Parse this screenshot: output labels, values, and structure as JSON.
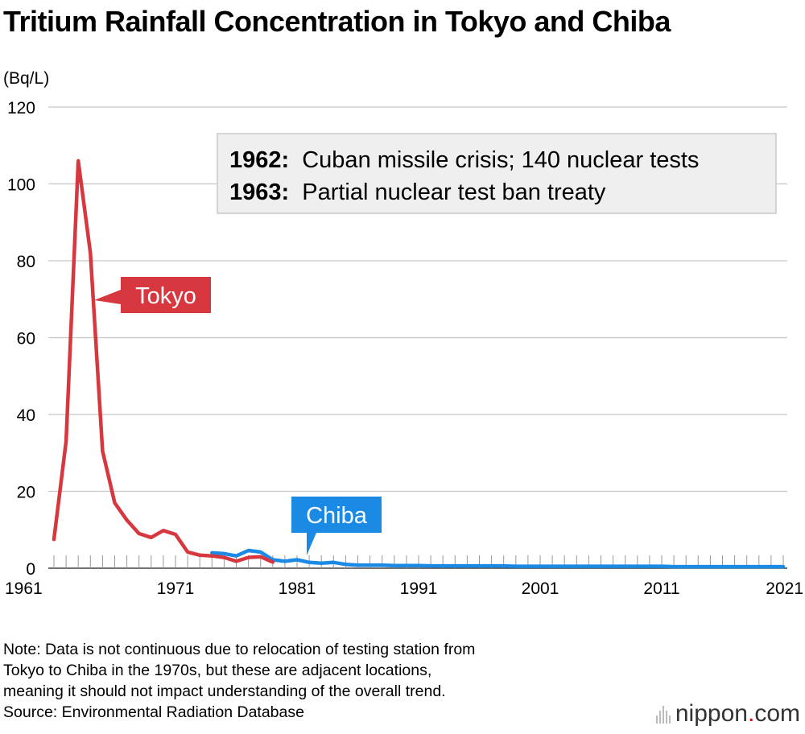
{
  "title": "Tritium Rainfall Concentration in Tokyo and Chiba",
  "chart_data": {
    "type": "line",
    "title": "Tritium Rainfall Concentration in Tokyo and Chiba",
    "ylabel": "(Bq/L)",
    "xlabel": "",
    "ylim": [
      0,
      120
    ],
    "xlim": [
      1961,
      2021
    ],
    "yticks": [
      "0",
      "20",
      "40",
      "60",
      "80",
      "100",
      "120"
    ],
    "xticks": [
      "1961",
      "1971",
      "1981",
      "1991",
      "2001",
      "2011",
      "2021"
    ],
    "grid": true,
    "series": [
      {
        "name": "Tokyo",
        "color": "#d7373f",
        "x": [
          1961,
          1962,
          1963,
          1964,
          1965,
          1966,
          1967,
          1968,
          1969,
          1970,
          1971,
          1972,
          1973,
          1974,
          1975,
          1976,
          1977,
          1978,
          1979
        ],
        "values": [
          7.5,
          33,
          106,
          82,
          30.5,
          17,
          12.5,
          9,
          8,
          9.8,
          8.8,
          4.2,
          3.4,
          3.2,
          2.8,
          1.8,
          2.8,
          3.0,
          1.6
        ]
      },
      {
        "name": "Chiba",
        "color": "#1a8ae5",
        "x": [
          1974,
          1975,
          1976,
          1977,
          1978,
          1979,
          1980,
          1981,
          1982,
          1983,
          1984,
          1985,
          1986,
          1987,
          1988,
          1989,
          1990,
          1991,
          1992,
          1993,
          1994,
          1995,
          1996,
          1997,
          1998,
          1999,
          2000,
          2001,
          2002,
          2003,
          2004,
          2005,
          2006,
          2007,
          2008,
          2009,
          2010,
          2011,
          2012,
          2013,
          2014,
          2015,
          2016,
          2017,
          2018,
          2019,
          2020,
          2021
        ],
        "values": [
          4.0,
          3.8,
          3.2,
          4.6,
          4.2,
          2.2,
          1.8,
          2.2,
          1.5,
          1.3,
          1.5,
          1.0,
          0.8,
          0.8,
          0.8,
          0.7,
          0.7,
          0.7,
          0.6,
          0.6,
          0.6,
          0.6,
          0.6,
          0.6,
          0.6,
          0.5,
          0.5,
          0.5,
          0.5,
          0.5,
          0.5,
          0.5,
          0.5,
          0.5,
          0.5,
          0.5,
          0.5,
          0.5,
          0.4,
          0.4,
          0.4,
          0.4,
          0.4,
          0.4,
          0.4,
          0.4,
          0.4,
          0.4
        ]
      }
    ],
    "annotations": [
      {
        "year": "1962:",
        "text": "Cuban missile crisis; 140 nuclear tests"
      },
      {
        "year": "1963:",
        "text": "Partial nuclear test ban treaty"
      }
    ]
  },
  "notes": [
    "Note: Data is not continuous due to relocation of testing station from",
    "Tokyo to Chiba in the 1970s, but these are adjacent locations,",
    "meaning it should not impact understanding of the overall trend.",
    "Source: Environmental Radiation Database"
  ],
  "brand": {
    "name": "nippon",
    "dot": ".",
    "suffix": "com"
  }
}
